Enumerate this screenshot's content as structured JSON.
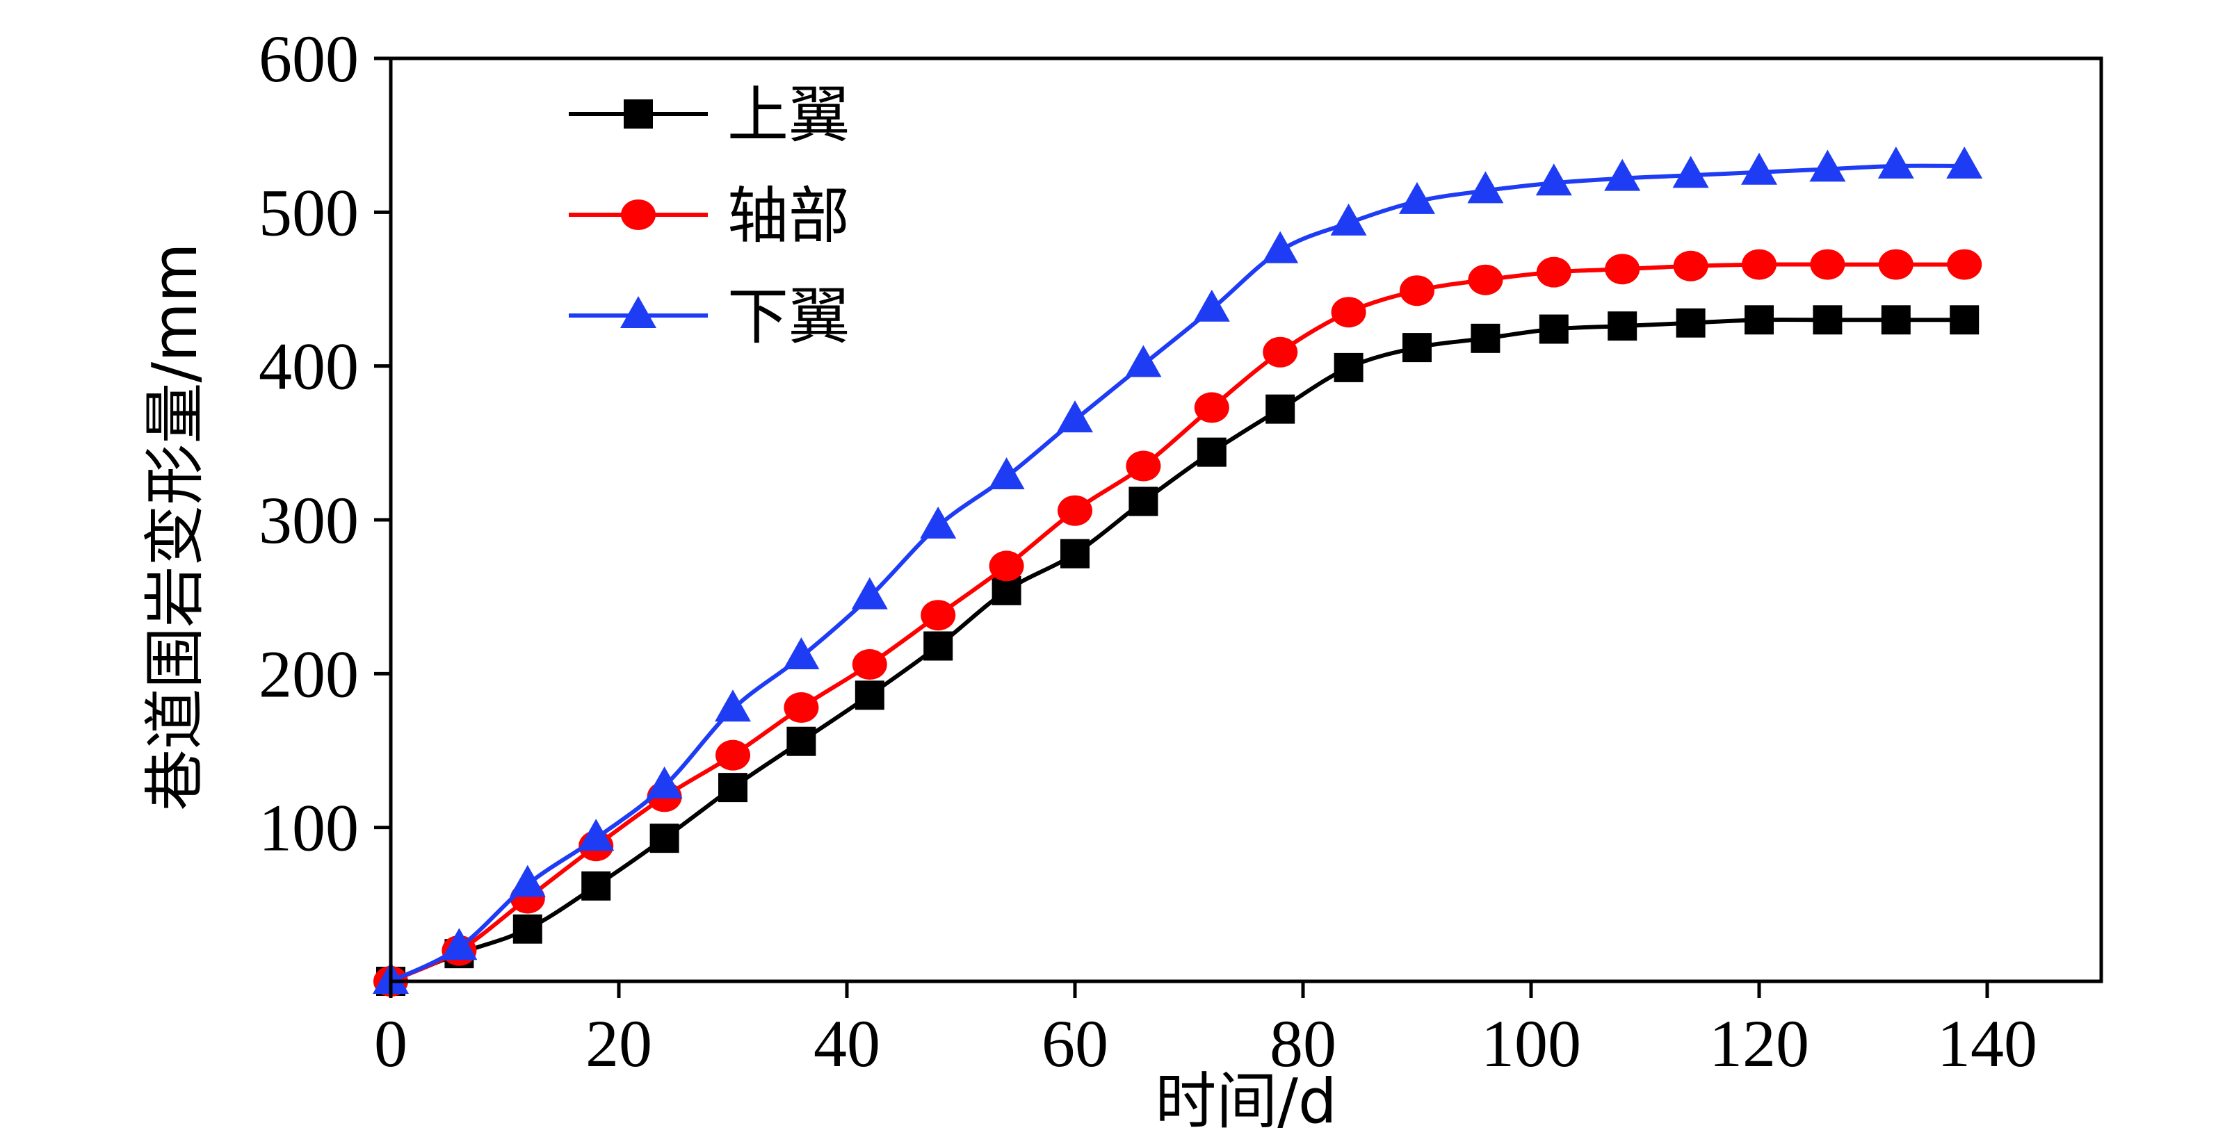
{
  "chart_data": {
    "type": "line",
    "title": "",
    "xlabel": "时间/d",
    "ylabel": "巷道围岩变形量/mm",
    "xlim": [
      0,
      150
    ],
    "ylim": [
      0,
      600
    ],
    "x_ticks": [
      0,
      20,
      40,
      60,
      80,
      100,
      120,
      140
    ],
    "y_ticks": [
      100,
      200,
      300,
      400,
      500,
      600
    ],
    "grid": false,
    "legend_position": "top-left",
    "x": [
      0,
      6,
      12,
      18,
      24,
      30,
      36,
      42,
      48,
      54,
      60,
      66,
      72,
      78,
      84,
      90,
      96,
      102,
      108,
      114,
      120,
      126,
      132,
      138
    ],
    "series": [
      {
        "name": "上翼",
        "color": "#000000",
        "marker": "square",
        "values": [
          0,
          18,
          34,
          62,
          93,
          126,
          156,
          186,
          218,
          254,
          278,
          312,
          344,
          372,
          399,
          412,
          418,
          424,
          426,
          428,
          430,
          430,
          430,
          430
        ]
      },
      {
        "name": "轴部",
        "color": "#ff0000",
        "marker": "circle",
        "values": [
          0,
          20,
          54,
          88,
          120,
          147,
          178,
          206,
          238,
          270,
          306,
          335,
          373,
          409,
          435,
          449,
          456,
          461,
          463,
          465,
          466,
          466,
          466,
          466
        ]
      },
      {
        "name": "下翼",
        "color": "#1f3cf5",
        "marker": "triangle",
        "values": [
          0,
          22,
          63,
          93,
          127,
          177,
          211,
          250,
          296,
          328,
          365,
          401,
          437,
          475,
          493,
          507,
          514,
          519,
          522,
          524,
          526,
          528,
          530,
          530
        ]
      }
    ]
  }
}
